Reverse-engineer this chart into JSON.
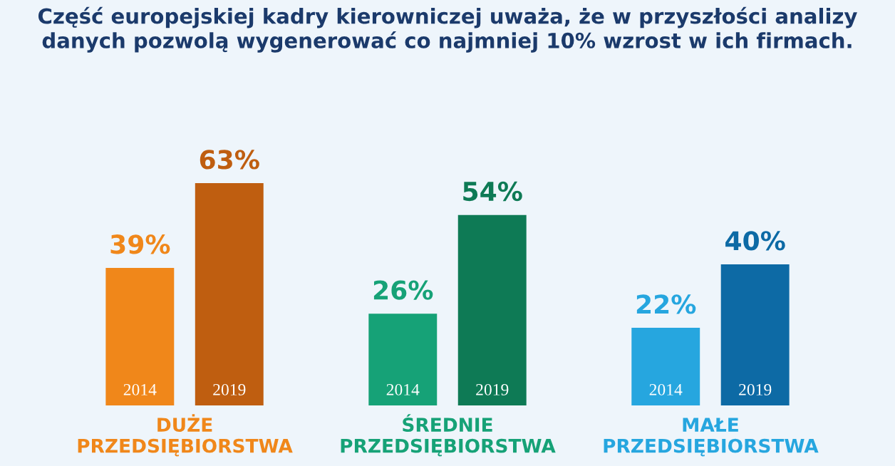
{
  "chart_data": {
    "type": "bar",
    "title": "Część europejskiej kadry kierowniczej uważa, że w przyszłości analizy\ndanych pozwolą wygenerować co najmniej 10% wzrost w ich firmach.",
    "categories": [
      "DUŻE\nPRZEDSIĘBIORSTWA",
      "ŚREDNIE\nPRZEDSIĘBIORSTWA",
      "MAŁE\nPRZEDSIĘBIORSTWA"
    ],
    "series": [
      {
        "name": "2014",
        "colors": [
          "#f0871a",
          "#16a277",
          "#26a6df"
        ],
        "values": [
          39,
          26,
          22
        ],
        "value_labels": [
          "39%",
          "26%",
          "22%"
        ]
      },
      {
        "name": "2019",
        "colors": [
          "#bf5e10",
          "#0e7a55",
          "#0d6aa5"
        ],
        "values": [
          63,
          54,
          40
        ],
        "value_labels": [
          "63%",
          "54%",
          "40%"
        ]
      }
    ],
    "grid": false,
    "legend": false
  }
}
